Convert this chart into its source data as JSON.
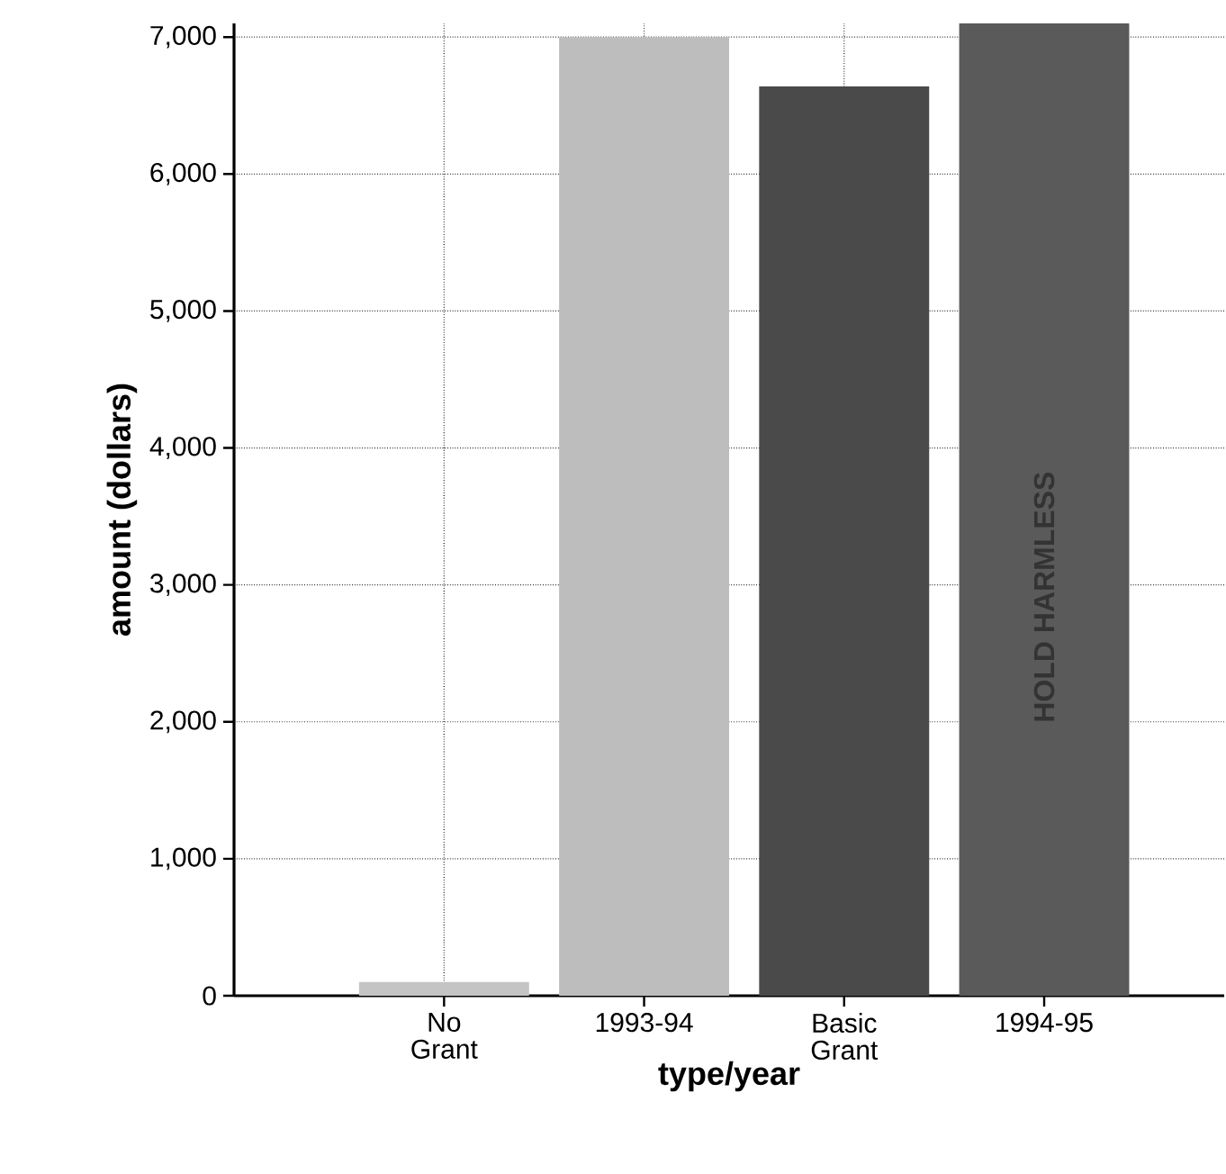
{
  "chart_data": {
    "type": "bar",
    "xlabel": "type/year",
    "ylabel": "amount (dollars)",
    "categories": [
      "No Grant",
      "1993-94",
      "Basic Grant",
      "1994-95"
    ],
    "values": [
      100,
      7000,
      6640,
      7100
    ],
    "colors": [
      "#c4c4c4",
      "#bdbdbd",
      "#4a4a4a",
      "#5a5a5a"
    ],
    "ylim": [
      0,
      7100
    ],
    "yticks": [
      {
        "value": 0,
        "label": "0"
      },
      {
        "value": 1000,
        "label": "1,000"
      },
      {
        "value": 2000,
        "label": "2,000"
      },
      {
        "value": 3000,
        "label": "3,000"
      },
      {
        "value": 4000,
        "label": "4,000"
      },
      {
        "value": 5000,
        "label": "5,000"
      },
      {
        "value": 6000,
        "label": "6,000"
      },
      {
        "value": 7000,
        "label": "7,000"
      }
    ],
    "grid": true,
    "annotations": [
      "HOLD HARMLESS"
    ]
  }
}
